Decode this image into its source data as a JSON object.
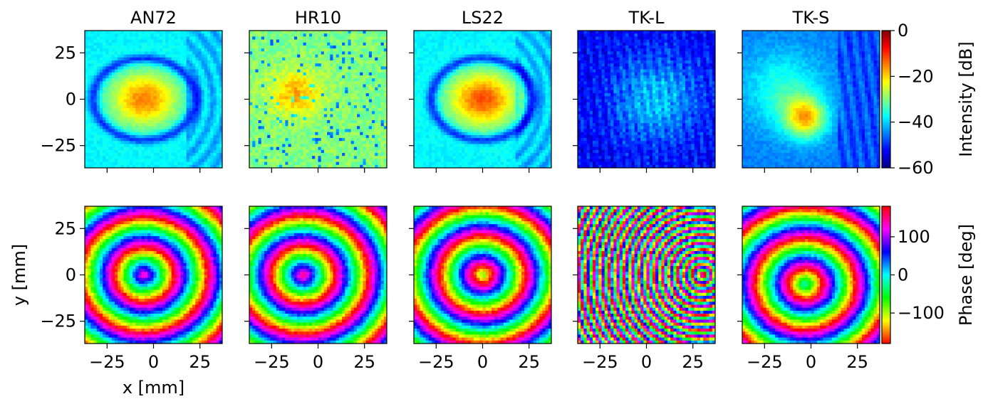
{
  "chart_data": {
    "type": "heatmap",
    "panel_titles": [
      "AN72",
      "HR10",
      "LS22",
      "TK-L",
      "TK-S"
    ],
    "xlabel": "x [mm]",
    "ylabel": "y [mm]",
    "xlim": [
      -37,
      37
    ],
    "ylim": [
      -37,
      37
    ],
    "x_ticks": [
      -25,
      0,
      25
    ],
    "y_ticks": [
      25,
      0,
      -25
    ],
    "x_tick_labels": [
      "−25",
      "0",
      "25"
    ],
    "y_tick_labels": [
      "25",
      "0",
      "−25"
    ],
    "rows": [
      {
        "quantity": "intensity",
        "colorbar": {
          "label": "Intensity [dB]",
          "colormap": "jet",
          "range": [
            -60,
            0
          ],
          "ticks": [
            0,
            -20,
            -40,
            -60
          ],
          "tick_labels": [
            "0",
            "−20",
            "−40",
            "−60"
          ]
        },
        "panels": [
          {
            "title": "AN72",
            "peak_dB": -15,
            "peak_x": -5,
            "peak_y": 0,
            "background_dB": -38,
            "has_ring": true
          },
          {
            "title": "HR10",
            "peak_dB": -18,
            "peak_x": -12,
            "peak_y": 3,
            "background_dB": -30,
            "has_ring": false
          },
          {
            "title": "LS22",
            "peak_dB": -12,
            "peak_x": 0,
            "peak_y": 0,
            "background_dB": -38,
            "has_ring": true
          },
          {
            "title": "TK-L",
            "peak_dB": -45,
            "peak_x": 5,
            "peak_y": 5,
            "background_dB": -55,
            "has_ring": false
          },
          {
            "title": "TK-S",
            "peak_dB": -20,
            "peak_x": -3,
            "peak_y": -10,
            "background_dB": -45,
            "has_ring": false
          }
        ]
      },
      {
        "quantity": "phase",
        "colorbar": {
          "label": "Phase [deg]",
          "colormap": "hsv",
          "range": [
            -180,
            180
          ],
          "ticks": [
            100,
            0,
            -100
          ],
          "tick_labels": [
            "100",
            "0",
            "−100"
          ]
        },
        "panels": [
          {
            "title": "AN72",
            "center_x": -5,
            "center_y": 0,
            "center_phase_deg": 140,
            "pattern": "concentric rings"
          },
          {
            "title": "HR10",
            "center_x": -8,
            "center_y": 0,
            "center_phase_deg": 160,
            "pattern": "concentric rings"
          },
          {
            "title": "LS22",
            "center_x": 0,
            "center_y": 0,
            "center_phase_deg": -80,
            "pattern": "concentric rings"
          },
          {
            "title": "TK-L",
            "center_x": 30,
            "center_y": 0,
            "center_phase_deg": 60,
            "pattern": "dense arcs"
          },
          {
            "title": "TK-S",
            "center_x": -3,
            "center_y": -5,
            "center_phase_deg": 0,
            "pattern": "concentric rings"
          }
        ]
      }
    ],
    "grid": false
  }
}
